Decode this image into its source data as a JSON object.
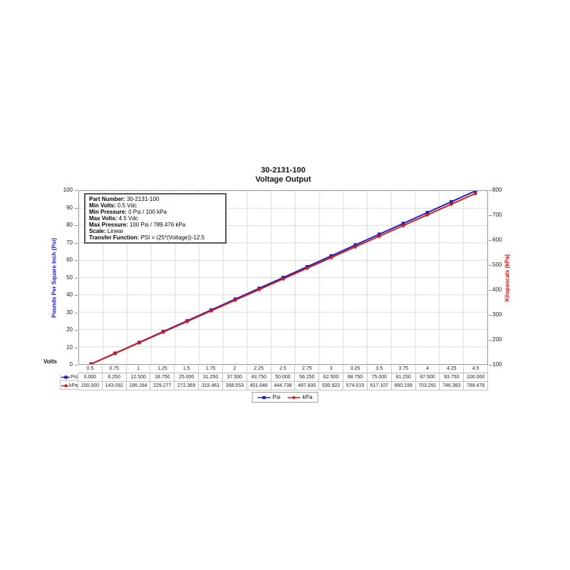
{
  "title": {
    "line1": "30-2131-100",
    "line2": "Voltage Output"
  },
  "info_box": {
    "rows": [
      {
        "label": "Part Number:",
        "value": " 30-2131-100"
      },
      {
        "label": "Min Volts:",
        "value": " 0.5 Vdc"
      },
      {
        "label": "Min Pressure:",
        "value": " 0 Psi / 100 kPa"
      },
      {
        "label": "Max Volts:",
        "value": " 4.5 Vdc"
      },
      {
        "label": "Max Pressure:",
        "value": " 100 Psi / 789.476 kPa"
      },
      {
        "label": "Scale:",
        "value": " Linear"
      },
      {
        "label": "Transfer Function:",
        "value": " PSI = (25*(Voltage))-12.5"
      }
    ]
  },
  "axes": {
    "x": {
      "title": "Volts"
    },
    "left": {
      "title": "Pounds Per Square Inch (Psi)",
      "ticks": [
        0,
        10,
        20,
        30,
        40,
        50,
        60,
        70,
        80,
        90,
        100
      ],
      "color": "#1a1acc"
    },
    "right": {
      "title": "Kilopascals (kPa)",
      "ticks": [
        100,
        200,
        300,
        400,
        500,
        600,
        700,
        800
      ],
      "color": "#cc1111"
    }
  },
  "chart_data": {
    "type": "line",
    "title": "30-2131-100 Voltage Output",
    "xlabel": "Volts",
    "ylabel_left": "Pounds Per Square Inch (Psi)",
    "ylabel_right": "Kilopascals (kPa)",
    "x": [
      0.5,
      0.75,
      1,
      1.25,
      1.5,
      1.75,
      2,
      2.25,
      2.5,
      2.75,
      3,
      3.25,
      3.5,
      3.75,
      4,
      4.25,
      4.5
    ],
    "x_labels": [
      "0.5",
      "0.75",
      "1",
      "1.25",
      "1.5",
      "1.75",
      "2",
      "2.25",
      "2.5",
      "2.75",
      "3",
      "3.25",
      "3.5",
      "3.75",
      "4",
      "4.25",
      "4.5"
    ],
    "series": [
      {
        "name": "Psi",
        "axis": "left",
        "color": "#1f1fc0",
        "marker": "square",
        "values": [
          0,
          6.25,
          12.5,
          18.75,
          25,
          31.25,
          37.5,
          43.75,
          50,
          56.25,
          62.5,
          68.75,
          75,
          81.25,
          87.5,
          93.75,
          100
        ],
        "display": [
          "0.000",
          "6.250",
          "12.500",
          "18.750",
          "25.000",
          "31.250",
          "37.500",
          "43.750",
          "50.000",
          "56.250",
          "62.500",
          "68.750",
          "75.000",
          "81.250",
          "87.500",
          "93.750",
          "100.000"
        ]
      },
      {
        "name": "kPa",
        "axis": "right",
        "color": "#d01d1d",
        "marker": "diamond",
        "values": [
          100,
          143.092,
          186.184,
          229.277,
          272.369,
          315.461,
          358.553,
          401.646,
          444.738,
          487.83,
          530.922,
          574.015,
          617.107,
          660.199,
          703.291,
          746.383,
          789.476
        ],
        "display": [
          "100.000",
          "143.092",
          "186.184",
          "229.277",
          "272.369",
          "315.461",
          "358.553",
          "401.646",
          "444.738",
          "487.830",
          "530.922",
          "574.015",
          "617.107",
          "660.199",
          "703.291",
          "746.383",
          "789.476"
        ]
      }
    ],
    "ylim_left": [
      0,
      100
    ],
    "ylim_right": [
      100,
      800
    ],
    "grid": true,
    "grid_color": "#dcdcdc",
    "legend_position": "bottom",
    "legend_labels": [
      "Psi",
      "kPa"
    ]
  }
}
